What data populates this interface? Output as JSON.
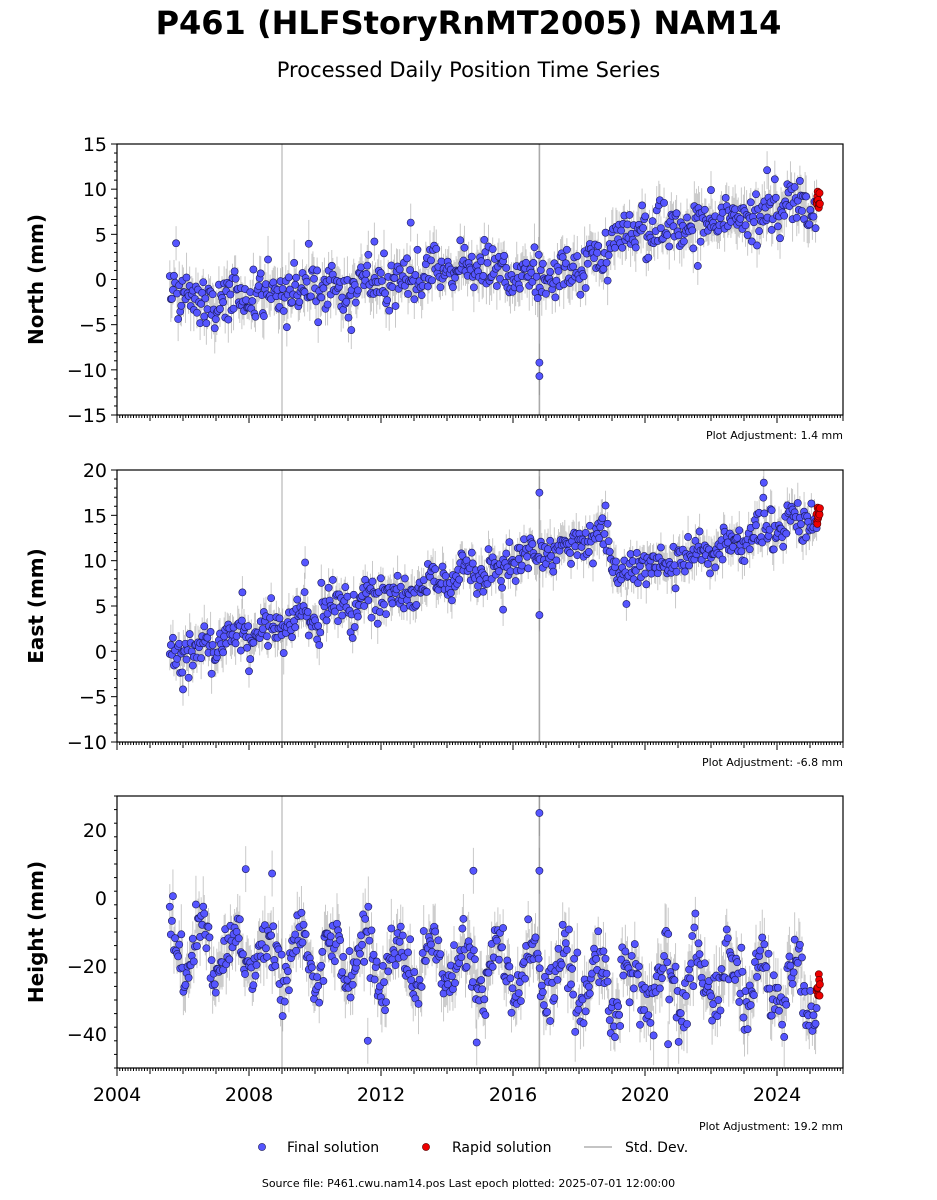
{
  "title": "P461 (HLFStoryRnMT2005) NAM14",
  "subtitle": "Processed Daily Position Time Series",
  "footer": "Source file: P461.cwu.nam14.pos  Last epoch plotted: 2025-07-01 12:00:00",
  "colors": {
    "final": "#5555ff",
    "rapid": "#ee0000",
    "stddev": "#b0b0b0",
    "vline": "#aaaaaa"
  },
  "chart_data": {
    "type": "scatter",
    "xlim": [
      2004,
      2026
    ],
    "x_ticks": [
      2004,
      2008,
      2012,
      2016,
      2020,
      2024
    ],
    "x_tick_labels": [
      "2004",
      "2008",
      "2012",
      "2016",
      "2020",
      "2024"
    ],
    "data_start": 2005.6,
    "data_end": 2025.3,
    "rapid_start": 2025.2,
    "vertical_lines": [
      2009.0,
      2016.8
    ],
    "legend": {
      "placement": "bottom-center",
      "final_label": "Final solution",
      "rapid_label": "Rapid solution",
      "stddev_label": "Std. Dev."
    },
    "panels": [
      {
        "name": "north",
        "ylabel": "North (mm)",
        "ylim": [
          -15,
          15
        ],
        "y_ticks": [
          -15,
          -10,
          -5,
          0,
          5,
          10,
          15
        ],
        "y_tick_labels": [
          "−15",
          "−10",
          "−5",
          "0",
          "5",
          "10",
          "15"
        ],
        "adjustment": "Plot Adjustment: 1.4 mm",
        "trend_points": [
          [
            2005.6,
            -1.5
          ],
          [
            2008.0,
            -2.0
          ],
          [
            2010.0,
            -1.5
          ],
          [
            2012.0,
            -0.5
          ],
          [
            2014.0,
            0.8
          ],
          [
            2015.0,
            1.5
          ],
          [
            2016.0,
            0.0
          ],
          [
            2017.5,
            0.5
          ],
          [
            2018.9,
            2.0
          ],
          [
            2019.0,
            5.0
          ],
          [
            2020.0,
            5.5
          ],
          [
            2022.0,
            6.0
          ],
          [
            2024.0,
            7.5
          ],
          [
            2025.3,
            8.5
          ]
        ],
        "noise": 1.4,
        "seasonal": 0.5,
        "outliers": [
          [
            2016.8,
            -9.2
          ],
          [
            2016.8,
            -10.7
          ],
          [
            2012.9,
            6.3
          ],
          [
            2023.7,
            12.1
          ],
          [
            2022.0,
            9.9
          ],
          [
            2011.8,
            4.2
          ],
          [
            2011.1,
            -5.6
          ],
          [
            2021.6,
            1.5
          ]
        ]
      },
      {
        "name": "east",
        "ylabel": "East (mm)",
        "ylim": [
          -10,
          20
        ],
        "y_ticks": [
          -10,
          -5,
          0,
          5,
          10,
          15,
          20
        ],
        "y_tick_labels": [
          "−10",
          "−5",
          "0",
          "5",
          "10",
          "15",
          "20"
        ],
        "adjustment": "Plot Adjustment: -6.8 mm",
        "trend_points": [
          [
            2005.6,
            -1.0
          ],
          [
            2007.0,
            1.0
          ],
          [
            2009.0,
            3.0
          ],
          [
            2011.0,
            5.0
          ],
          [
            2013.0,
            7.0
          ],
          [
            2015.0,
            9.0
          ],
          [
            2017.0,
            11.0
          ],
          [
            2018.9,
            13.0
          ],
          [
            2019.0,
            8.5
          ],
          [
            2020.0,
            9.5
          ],
          [
            2022.0,
            11.0
          ],
          [
            2024.0,
            13.5
          ],
          [
            2025.3,
            15.0
          ]
        ],
        "noise": 1.2,
        "seasonal": 0.6,
        "outliers": [
          [
            2016.8,
            17.5
          ],
          [
            2016.8,
            4.0
          ],
          [
            2023.6,
            18.6
          ],
          [
            2007.8,
            6.5
          ],
          [
            2009.7,
            9.8
          ],
          [
            2006.0,
            -4.2
          ],
          [
            2008.0,
            -2.2
          ],
          [
            2015.7,
            4.6
          ]
        ]
      },
      {
        "name": "height",
        "ylabel": "Height (mm)",
        "ylim": [
          -50,
          30
        ],
        "y_ticks": [
          -40,
          -20,
          0,
          20
        ],
        "y_tick_labels": [
          "−40",
          "−20",
          "0",
          "20"
        ],
        "adjustment": "Plot Adjustment: 19.2 mm",
        "trend_points": [
          [
            2005.6,
            -14.0
          ],
          [
            2010.0,
            -18.0
          ],
          [
            2015.0,
            -19.0
          ],
          [
            2018.0,
            -23.0
          ],
          [
            2020.0,
            -26.0
          ],
          [
            2022.0,
            -24.0
          ],
          [
            2025.3,
            -27.0
          ]
        ],
        "noise": 4.5,
        "seasonal": 8.0,
        "outliers": [
          [
            2016.8,
            25.0
          ],
          [
            2016.8,
            8.0
          ],
          [
            2007.9,
            8.5
          ],
          [
            2008.7,
            7.2
          ],
          [
            2014.8,
            8.0
          ],
          [
            2011.6,
            -42.0
          ],
          [
            2014.9,
            -42.5
          ],
          [
            2020.7,
            -43.0
          ]
        ]
      }
    ]
  }
}
